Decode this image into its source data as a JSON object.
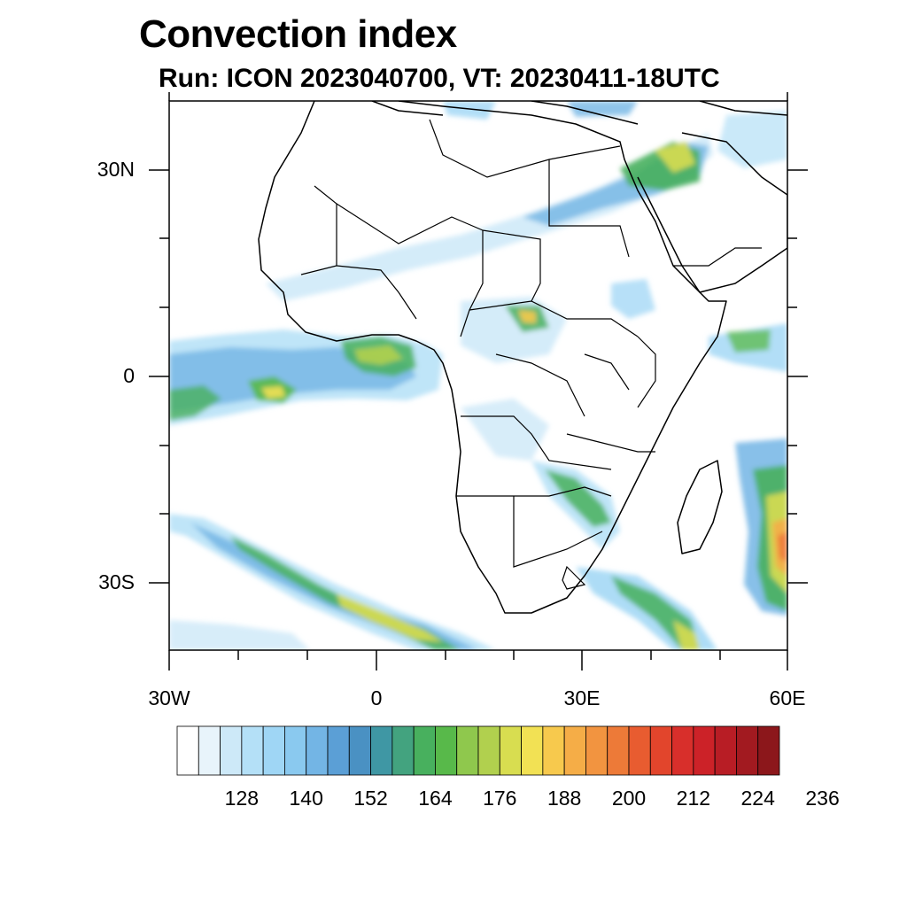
{
  "title": "Convection index",
  "subtitle": "Run: ICON 2023040700,  VT: 20230411-18UTC",
  "map": {
    "lat_labels": [
      "30N",
      "0",
      "30S"
    ],
    "lon_labels": [
      "30W",
      "0",
      "30E",
      "60E"
    ],
    "extent": {
      "lon": [
        -30,
        60
      ],
      "lat": [
        -40,
        40
      ]
    },
    "colors": {
      "frame": "#000000",
      "coast": "#000000",
      "background": "#ffffff"
    }
  },
  "colorbar": {
    "tick_labels": [
      "128",
      "140",
      "152",
      "164",
      "176",
      "188",
      "200",
      "212",
      "224",
      "236"
    ],
    "colors": [
      "#ffffff",
      "#e8f4fb",
      "#cde9f8",
      "#b4e0f7",
      "#9fd6f5",
      "#8ac9ef",
      "#73b5e5",
      "#5b9fd6",
      "#4a91c3",
      "#3f97a4",
      "#43a37f",
      "#48b05e",
      "#58b94a",
      "#8fc84d",
      "#b1d04e",
      "#d8dd50",
      "#f2e154",
      "#f7c94d",
      "#f5ad47",
      "#f29440",
      "#ed7a38",
      "#e85c30",
      "#e2452c",
      "#d82f2b",
      "#cc2228",
      "#b81d25",
      "#a21a20",
      "#8c171b"
    ]
  }
}
